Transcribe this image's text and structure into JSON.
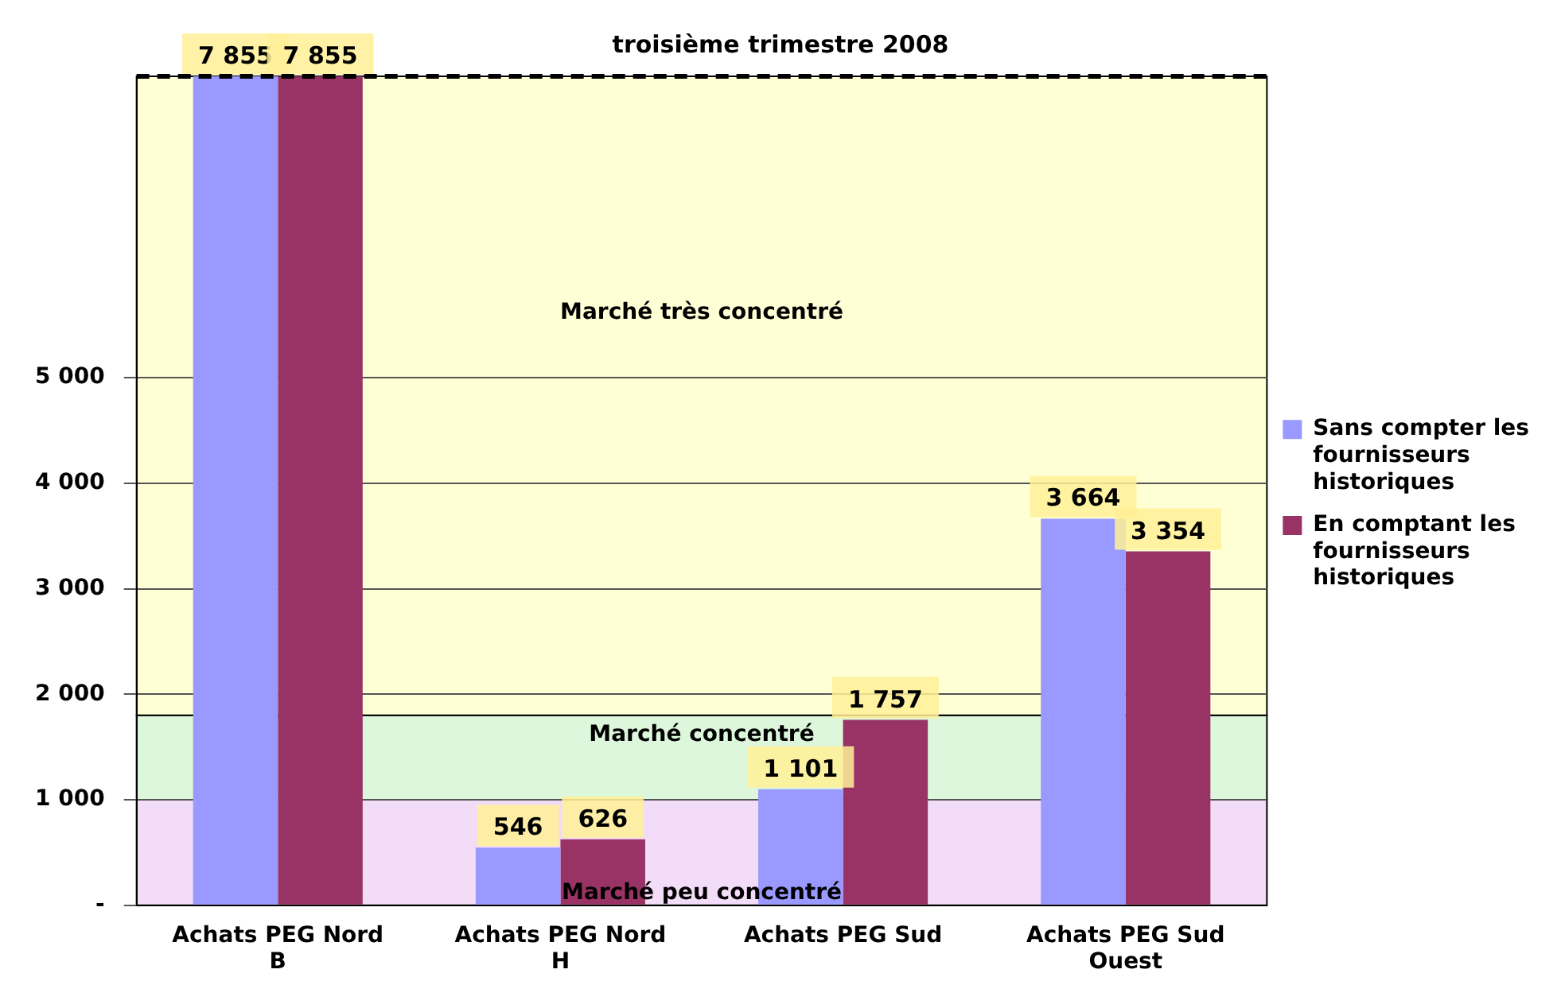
{
  "chart_data": {
    "type": "bar",
    "title": "troisième trimestre 2008",
    "categories": [
      "Achats PEG Nord B",
      "Achats PEG Nord H",
      "Achats PEG Sud",
      "Achats PEG Sud Ouest"
    ],
    "series": [
      {
        "name": "Sans compter les fournisseurs historiques",
        "color": "#9999ff",
        "values": [
          7855,
          546,
          1101,
          3664
        ],
        "value_labels": [
          "7 855",
          "546",
          "1 101",
          "3 664"
        ]
      },
      {
        "name": "En comptant les fournisseurs historiques",
        "color": "#993366",
        "values": [
          7855,
          626,
          1757,
          3354
        ],
        "value_labels": [
          "7 855",
          "626",
          "1 757",
          "3 354"
        ]
      }
    ],
    "ylim": [
      0,
      7855
    ],
    "yticks": [
      {
        "value": 0,
        "label": "-"
      },
      {
        "value": 1000,
        "label": "1 000"
      },
      {
        "value": 2000,
        "label": "2 000"
      },
      {
        "value": 3000,
        "label": "3 000"
      },
      {
        "value": 4000,
        "label": "4 000"
      },
      {
        "value": 5000,
        "label": "5 000"
      }
    ],
    "bands": [
      {
        "axis": "y",
        "from": 0,
        "to": 1000,
        "label": "Marché peu concentré",
        "color": "#f3dcf7"
      },
      {
        "axis": "y",
        "from": 1000,
        "to": 1800,
        "label": "Marché concentré",
        "color": "#dcf7dc"
      },
      {
        "axis": "y",
        "from": 1800,
        "to": 7855,
        "label": "Marché très concentré",
        "color": "#ffffd6"
      }
    ],
    "grid": "y",
    "legend": "right"
  }
}
